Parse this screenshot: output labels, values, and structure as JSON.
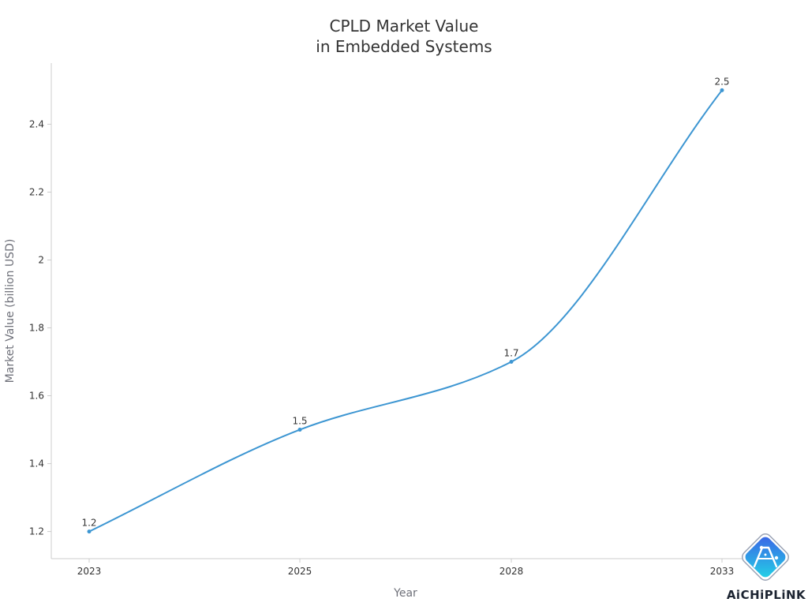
{
  "chart_data": {
    "type": "line",
    "smooth": true,
    "title": [
      "CPLD Market Value",
      "in Embedded Systems"
    ],
    "xlabel": "Year",
    "ylabel": "Market Value (billion USD)",
    "categories": [
      "2023",
      "2025",
      "2028",
      "2033"
    ],
    "series": [
      {
        "values": [
          1.2,
          1.5,
          1.7,
          2.5
        ],
        "data_labels": [
          "1.2",
          "1.5",
          "1.7",
          "2.5"
        ]
      }
    ],
    "ylim": [
      1.12,
      2.58
    ],
    "yticks": [
      1.2,
      1.4,
      1.6,
      1.8,
      2,
      2.2,
      2.4
    ],
    "ytick_labels": [
      "1.2",
      "1.4",
      "1.6",
      "1.8",
      "2",
      "2.2",
      "2.4"
    ],
    "grid": false,
    "colors": {
      "line": "#3d96d2",
      "axis": "#cccccc",
      "text": "#333333",
      "axis_title": "#6e7079"
    }
  },
  "watermark": {
    "text": "AiCHiPLiNK",
    "icon": "aichiplink-logo-icon"
  }
}
